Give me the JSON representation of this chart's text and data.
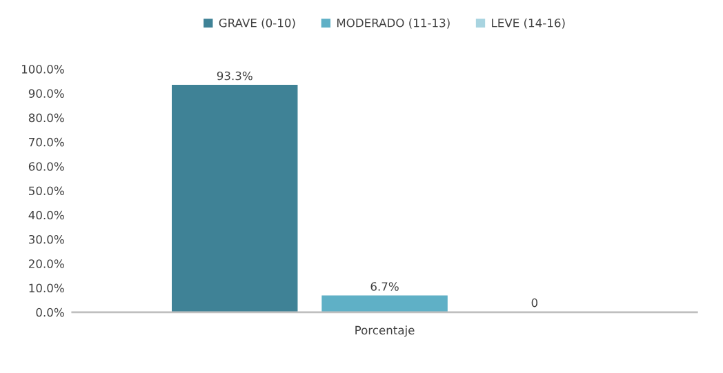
{
  "chart_data": {
    "type": "bar",
    "categories": [
      "Porcentaje"
    ],
    "series": [
      {
        "name": "GRAVE (0-10)",
        "color": "#3f8296",
        "values": [
          93.3
        ],
        "value_labels": [
          "93.3%"
        ]
      },
      {
        "name": "MODERADO (11-13)",
        "color": "#5fb0c6",
        "values": [
          6.7
        ],
        "value_labels": [
          "6.7%"
        ]
      },
      {
        "name": "LEVE (14-16)",
        "color": "#a8d4e0",
        "values": [
          0
        ],
        "value_labels": [
          "0"
        ]
      }
    ],
    "ylim": [
      0,
      100
    ],
    "yticks": [
      {
        "value": 0,
        "label": "0.0%"
      },
      {
        "value": 10,
        "label": "10.0%"
      },
      {
        "value": 20,
        "label": "20.0%"
      },
      {
        "value": 30,
        "label": "30.0%"
      },
      {
        "value": 40,
        "label": "40.0%"
      },
      {
        "value": 50,
        "label": "50.0%"
      },
      {
        "value": 60,
        "label": "60.0%"
      },
      {
        "value": 70,
        "label": "70.0%"
      },
      {
        "value": 80,
        "label": "80.0%"
      },
      {
        "value": 90,
        "label": "90.0%"
      },
      {
        "value": 100,
        "label": "100.0%"
      }
    ],
    "grid": false,
    "legend": "top"
  }
}
